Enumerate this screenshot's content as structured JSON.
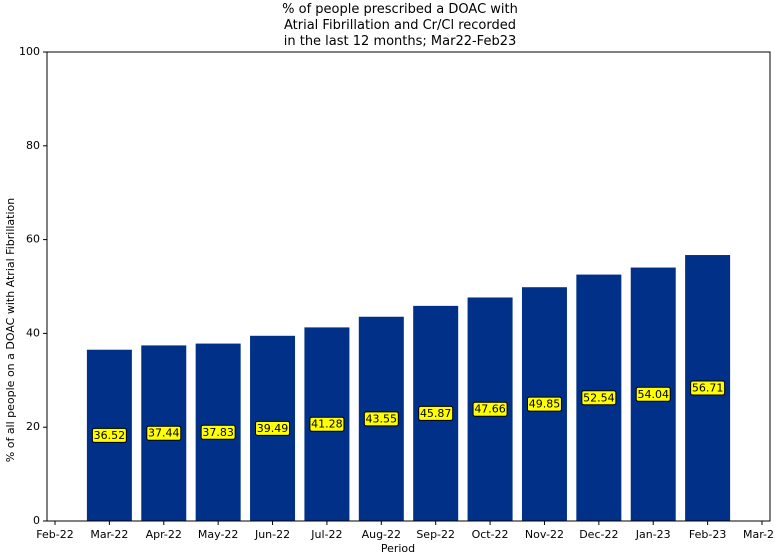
{
  "chart_data": {
    "type": "bar",
    "title": "% of people prescribed a DOAC with\nAtrial Fibrillation and Cr/Cl recorded\nin the last 12 months; Mar22-Feb23",
    "x_label": "Period",
    "y_label": "% of all people on a DOAC with Atrial Fibrillation",
    "categories": [
      "Feb-22",
      "Mar-22",
      "Apr-22",
      "May-22",
      "Jun-22",
      "Jul-22",
      "Aug-22",
      "Sep-22",
      "Oct-22",
      "Nov-22",
      "Dec-22",
      "Jan-23",
      "Feb-23",
      "Mar-23"
    ],
    "values": [
      null,
      36.52,
      37.44,
      37.83,
      39.49,
      41.28,
      43.55,
      45.87,
      47.66,
      49.85,
      52.54,
      54.04,
      56.71,
      null
    ],
    "color": "#003087",
    "data_labels": true,
    "label_color": "#ffff00",
    "ylim": [
      0,
      100
    ],
    "yticks": [
      0,
      20,
      40,
      60,
      80,
      100
    ]
  }
}
